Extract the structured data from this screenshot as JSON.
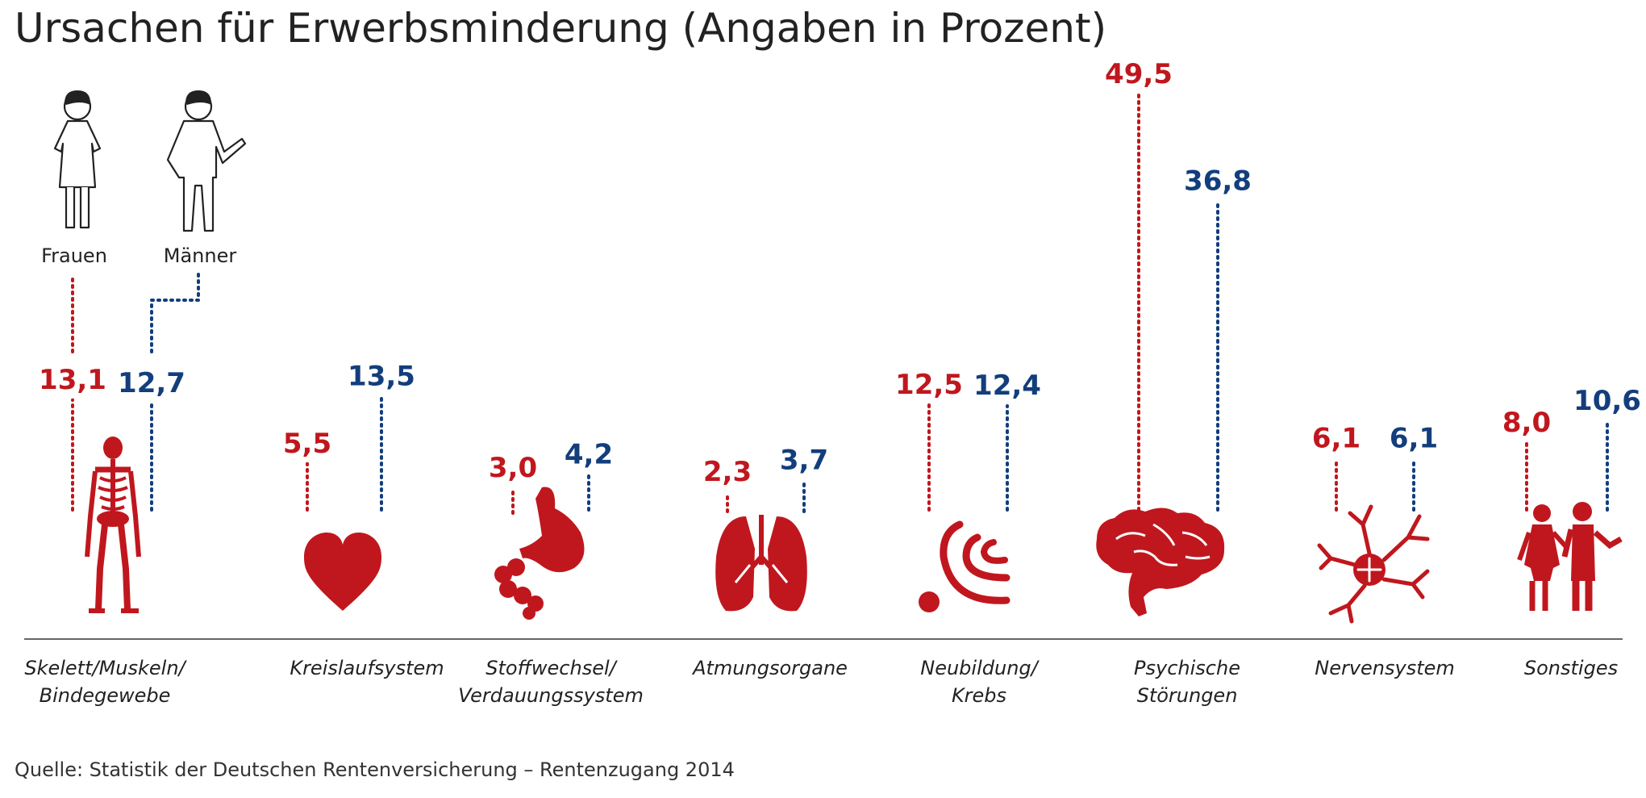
{
  "title": "Ursachen für Erwerbsminderung (Angaben in Prozent)",
  "source": "Quelle: Statistik der Deutschen Rentenversicherung – Rentenzugang 2014",
  "colors": {
    "frauen": "#c0171e",
    "maenner": "#133e7c",
    "icons": "#c0171e",
    "text": "#222222"
  },
  "legend": {
    "frauen": "Frauen",
    "maenner": "Männer"
  },
  "chart_data": {
    "type": "bar",
    "categories": [
      [
        "Skelett/Muskeln/",
        "Bindegewebe"
      ],
      [
        "Kreislaufsystem"
      ],
      [
        "Stoffwechsel/",
        "Verdauungssystem"
      ],
      [
        "Atmungsorgane"
      ],
      [
        "Neubildung/",
        "Krebs"
      ],
      [
        "Psychische",
        "Störungen"
      ],
      [
        "Nervensystem"
      ],
      [
        "Sonstiges"
      ]
    ],
    "category_icons": [
      "skeleton-icon",
      "heart-icon",
      "stomach-icon",
      "lungs-icon",
      "tumor-icon",
      "brain-icon",
      "neuron-icon",
      "people-icon"
    ],
    "series": [
      {
        "name": "Frauen",
        "values": [
          13.1,
          5.5,
          3.0,
          2.3,
          12.5,
          49.5,
          6.1,
          8.0
        ],
        "labels": [
          "13,1",
          "5,5",
          "3,0",
          "2,3",
          "12,5",
          "49,5",
          "6,1",
          "8,0"
        ]
      },
      {
        "name": "Männer",
        "values": [
          12.7,
          13.5,
          4.2,
          3.7,
          12.4,
          36.8,
          6.1,
          10.6
        ],
        "labels": [
          "12,7",
          "13,5",
          "4,2",
          "3,7",
          "12,4",
          "36,8",
          "6,1",
          "10,6"
        ]
      }
    ]
  }
}
